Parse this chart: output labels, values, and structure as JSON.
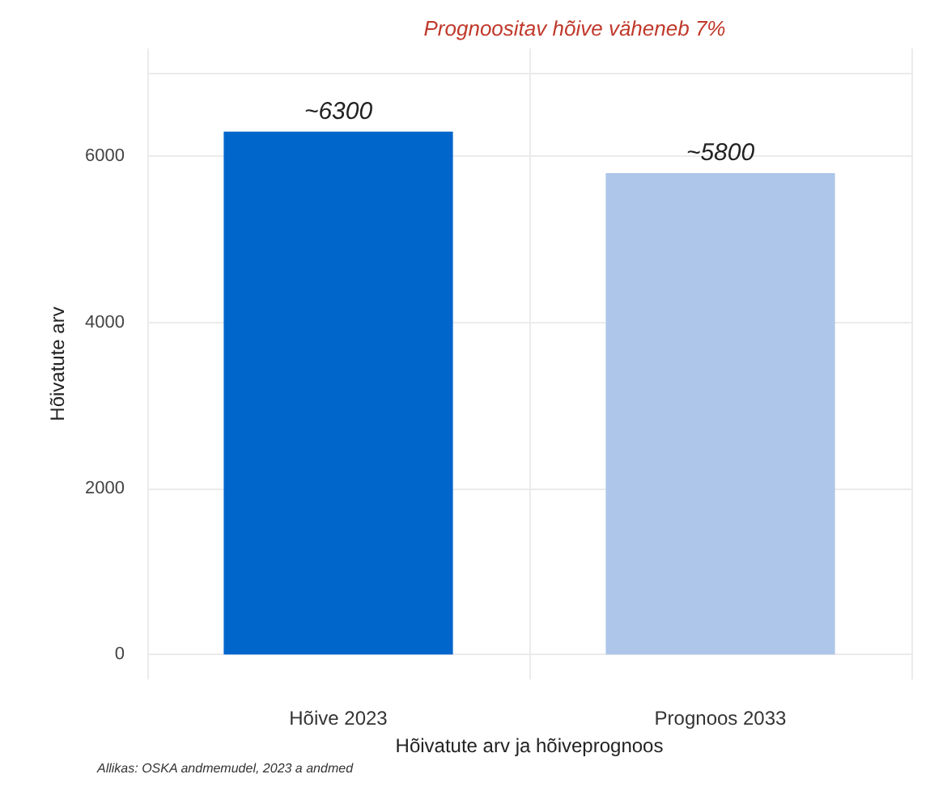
{
  "chart_data": {
    "type": "bar",
    "title": "Prognoositav hõive väheneb 7%",
    "xlabel": "Hõivatute arv ja hõiveprognoos",
    "ylabel": "Hõivatute arv",
    "annotations": [
      "Allikas: OSKA andmemudel, 2023 a andmed"
    ],
    "categories": [
      "Hõive 2023",
      "Prognoos 2033"
    ],
    "values": [
      6300,
      5800
    ],
    "colors": [
      "#0066cc",
      "#aec6ea"
    ],
    "value_labels": [
      "~6300",
      "~5800"
    ],
    "ylim": [
      -300,
      7300
    ],
    "yticks": [
      0,
      2000,
      4000,
      6000,
      {
        "value": 7000,
        "label": null
      }
    ],
    "grid": true
  }
}
